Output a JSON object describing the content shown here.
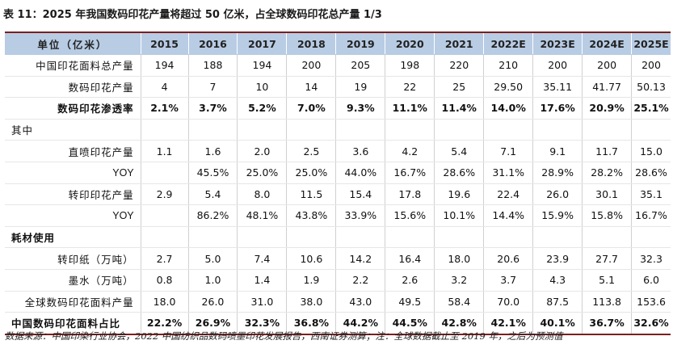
{
  "title": "表 11：2025 年我国数码印花产量将超过 50 亿米，占全球数码印花总产量 1/3",
  "table": {
    "header": [
      "单位（亿米）",
      "2015",
      "2016",
      "2017",
      "2018",
      "2019",
      "2020",
      "2021",
      "2022E",
      "2023E",
      "2024E",
      "2025E"
    ],
    "rows": [
      {
        "label": "中国印花面料总产量",
        "style": "normal",
        "align": "indent",
        "values": [
          "194",
          "188",
          "194",
          "200",
          "205",
          "198",
          "220",
          "210",
          "200",
          "200",
          "200"
        ]
      },
      {
        "label": "数码印花产量",
        "style": "normal",
        "align": "indent",
        "values": [
          "4",
          "7",
          "10",
          "14",
          "19",
          "22",
          "25",
          "29.50",
          "35.11",
          "41.77",
          "50.13"
        ]
      },
      {
        "label": "数码印花渗透率",
        "style": "bold",
        "align": "indent",
        "values": [
          "2.1%",
          "3.7%",
          "5.2%",
          "7.0%",
          "9.3%",
          "11.1%",
          "11.4%",
          "14.0%",
          "17.6%",
          "20.9%",
          "25.1%"
        ]
      },
      {
        "label": "其中",
        "style": "normal",
        "align": "left",
        "values": [
          "",
          "",
          "",
          "",
          "",
          "",
          "",
          "",
          "",
          "",
          ""
        ]
      },
      {
        "label": "直喷印花产量",
        "style": "normal",
        "align": "indent",
        "values": [
          "1.1",
          "1.6",
          "2.0",
          "2.5",
          "3.6",
          "4.2",
          "5.4",
          "7.1",
          "9.1",
          "11.7",
          "15.0"
        ]
      },
      {
        "label": "YOY",
        "style": "normal",
        "align": "indent",
        "values": [
          "",
          "45.5%",
          "25.0%",
          "25.0%",
          "44.0%",
          "16.7%",
          "28.6%",
          "31.1%",
          "28.9%",
          "28.2%",
          "28.6%"
        ]
      },
      {
        "label": "转印印花产量",
        "style": "normal",
        "align": "indent",
        "values": [
          "2.9",
          "5.4",
          "8.0",
          "11.5",
          "15.4",
          "17.8",
          "19.6",
          "22.4",
          "26.0",
          "30.1",
          "35.1"
        ]
      },
      {
        "label": "YOY",
        "style": "normal",
        "align": "indent",
        "values": [
          "",
          "86.2%",
          "48.1%",
          "43.8%",
          "33.9%",
          "15.6%",
          "10.1%",
          "14.4%",
          "15.9%",
          "15.8%",
          "16.7%"
        ]
      },
      {
        "label": "耗材使用",
        "style": "bold",
        "align": "left",
        "values": [
          "",
          "",
          "",
          "",
          "",
          "",
          "",
          "",
          "",
          "",
          ""
        ]
      },
      {
        "label": "转印纸（万吨）",
        "style": "normal",
        "align": "indent",
        "values": [
          "2.7",
          "5.0",
          "7.4",
          "10.6",
          "14.2",
          "16.4",
          "18.0",
          "20.6",
          "23.9",
          "27.7",
          "32.3"
        ]
      },
      {
        "label": "墨水（万吨）",
        "style": "normal",
        "align": "indent",
        "values": [
          "0.8",
          "1.0",
          "1.4",
          "1.9",
          "2.2",
          "2.6",
          "3.2",
          "3.7",
          "4.3",
          "5.1",
          "6.0"
        ]
      },
      {
        "label": "全球数码印花面料产量",
        "style": "normal",
        "align": "indent",
        "values": [
          "18.0",
          "26.0",
          "31.0",
          "38.0",
          "43.0",
          "49.5",
          "58.4",
          "70.0",
          "87.5",
          "113.8",
          "153.6"
        ]
      },
      {
        "label": "中国数码印花面料占比",
        "style": "bold",
        "align": "left",
        "values": [
          "22.2%",
          "26.9%",
          "32.3%",
          "36.8%",
          "44.2%",
          "44.5%",
          "42.8%",
          "42.1%",
          "40.1%",
          "36.7%",
          "32.6%"
        ]
      }
    ]
  },
  "source": "数据来源：中国印染行业协会，2022 中国纺织品数码喷墨印花发展报告，西南证券测算；注：全球数据截止至 2019 年，之后为预测值"
}
